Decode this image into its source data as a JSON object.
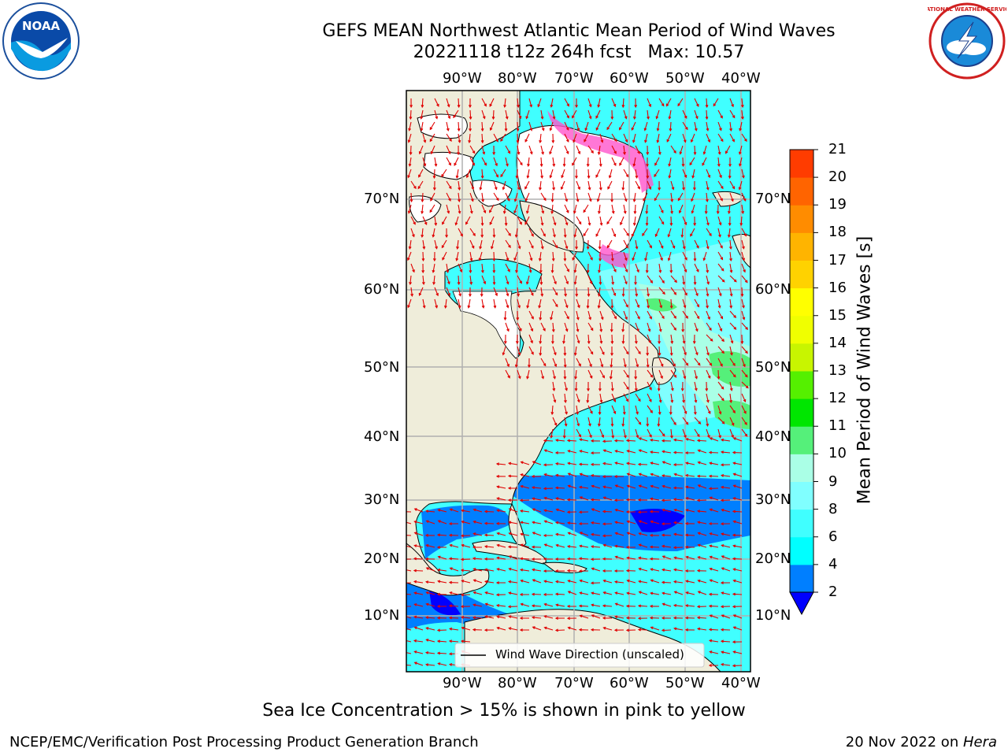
{
  "header": {
    "title_line1": "GEFS MEAN Northwest Atlantic Mean Period of Wind Waves",
    "title_line2": "20221118 t12z 264h fcst   Max: 10.57"
  },
  "logos": {
    "left": {
      "name": "noaa-logo",
      "text": "NOAA"
    },
    "right": {
      "name": "nws-logo",
      "text": "NATIONAL WEATHER SERVICE"
    }
  },
  "map": {
    "lon_labels": [
      "90°W",
      "80°W",
      "70°W",
      "60°W",
      "50°W",
      "40°W"
    ],
    "lat_labels": [
      "70°N",
      "60°N",
      "50°N",
      "40°N",
      "30°N",
      "20°N",
      "10°N"
    ],
    "legend_label": "Wind Wave Direction (unscaled)",
    "colors": {
      "land": "#efedda",
      "ice": "#ffffff",
      "arrows": "#e00000",
      "grid": "#b0b0b0"
    }
  },
  "colorbar": {
    "label": "Mean Period of Wind Waves [s]",
    "ticks": [
      "21",
      "20",
      "19",
      "18",
      "17",
      "16",
      "15",
      "14",
      "13",
      "12",
      "11",
      "10",
      "9",
      "8",
      "6",
      "4",
      "2"
    ],
    "colors": [
      "#0000ff",
      "#007fff",
      "#00ffff",
      "#40ffff",
      "#80ffff",
      "#aaffe6",
      "#55f07a",
      "#00e600",
      "#55f000",
      "#c8f500",
      "#f0ff00",
      "#ffff00",
      "#ffd200",
      "#ffb400",
      "#ff8c00",
      "#ff6400",
      "#ff3c00",
      "#ff0000"
    ]
  },
  "notes": {
    "sea_ice": "Sea Ice Concentration > 15% is shown in pink to yellow"
  },
  "footer": {
    "left": "NCEP/EMC/Verification Post Processing Product Generation Branch",
    "date": "20 Nov 2022 on ",
    "machine": "Hera"
  }
}
